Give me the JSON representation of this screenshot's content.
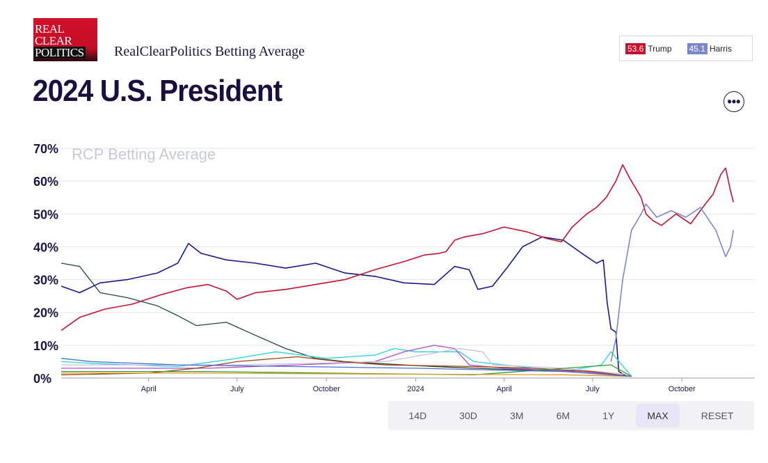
{
  "header": {
    "logo_lines": [
      "REAL",
      "CLEAR",
      "POLITICS"
    ],
    "subtitle": "RealClearPolitics Betting Average",
    "title": "2024 U.S. President"
  },
  "legend": [
    {
      "value": "53.6",
      "name": "Trump",
      "color": "#c8102e"
    },
    {
      "value": "45.1",
      "name": "Harris",
      "color": "#7b86c8"
    }
  ],
  "more_button": {
    "icon": "more-dots-icon",
    "label": "•••"
  },
  "range_buttons": [
    {
      "label": "14D",
      "active": false
    },
    {
      "label": "30D",
      "active": false
    },
    {
      "label": "3M",
      "active": false
    },
    {
      "label": "6M",
      "active": false
    },
    {
      "label": "1Y",
      "active": false
    },
    {
      "label": "MAX",
      "active": true
    },
    {
      "label": "RESET",
      "active": false
    }
  ],
  "chart_data": {
    "type": "line",
    "watermark": "RCP Betting Average",
    "ylim": [
      0,
      70
    ],
    "yticks": [
      "0%",
      "10%",
      "20%",
      "30%",
      "40%",
      "50%",
      "60%",
      "70%"
    ],
    "xlim": [
      "2023-01-01",
      "2024-12-15"
    ],
    "xticks": [
      {
        "date": "2023-04-01",
        "label": "April"
      },
      {
        "date": "2023-07-01",
        "label": "July"
      },
      {
        "date": "2023-10-01",
        "label": "October"
      },
      {
        "date": "2024-01-01",
        "label": "2024"
      },
      {
        "date": "2024-04-01",
        "label": "April"
      },
      {
        "date": "2024-07-01",
        "label": "July"
      },
      {
        "date": "2024-10-01",
        "label": "October"
      }
    ],
    "grid": true,
    "series": [
      {
        "name": "Trump",
        "color": "#c8102e",
        "points": [
          [
            "2023-01-01",
            14.5
          ],
          [
            "2023-01-20",
            18.5
          ],
          [
            "2023-02-15",
            21
          ],
          [
            "2023-03-15",
            22.5
          ],
          [
            "2023-04-15",
            25.5
          ],
          [
            "2023-05-10",
            27.5
          ],
          [
            "2023-06-01",
            28.5
          ],
          [
            "2023-06-20",
            26.5
          ],
          [
            "2023-07-01",
            24
          ],
          [
            "2023-07-20",
            26
          ],
          [
            "2023-08-20",
            27
          ],
          [
            "2023-09-20",
            28.5
          ],
          [
            "2023-10-20",
            30
          ],
          [
            "2023-11-20",
            33
          ],
          [
            "2023-12-20",
            35.5
          ],
          [
            "2024-01-10",
            37.5
          ],
          [
            "2024-01-25",
            38
          ],
          [
            "2024-02-01",
            38.5
          ],
          [
            "2024-02-10",
            42
          ],
          [
            "2024-02-20",
            43
          ],
          [
            "2024-03-10",
            44
          ],
          [
            "2024-04-01",
            46
          ],
          [
            "2024-04-25",
            44.5
          ],
          [
            "2024-05-15",
            42.5
          ],
          [
            "2024-05-30",
            41.5
          ],
          [
            "2024-06-10",
            46
          ],
          [
            "2024-06-25",
            50
          ],
          [
            "2024-07-05",
            52
          ],
          [
            "2024-07-15",
            55
          ],
          [
            "2024-07-25",
            60
          ],
          [
            "2024-08-01",
            65
          ],
          [
            "2024-08-08",
            61
          ],
          [
            "2024-08-20",
            55
          ],
          [
            "2024-08-25",
            50
          ],
          [
            "2024-09-01",
            48
          ],
          [
            "2024-09-10",
            46.5
          ],
          [
            "2024-09-25",
            50
          ],
          [
            "2024-10-10",
            47
          ],
          [
            "2024-10-25",
            53
          ],
          [
            "2024-11-02",
            56
          ],
          [
            "2024-11-10",
            62
          ],
          [
            "2024-11-15",
            64
          ],
          [
            "2024-11-20",
            57
          ],
          [
            "2024-11-23",
            53.6
          ]
        ]
      },
      {
        "name": "Harris",
        "color": "#7b86c8",
        "points": [
          [
            "2024-07-20",
            5
          ],
          [
            "2024-07-25",
            12
          ],
          [
            "2024-08-01",
            30
          ],
          [
            "2024-08-10",
            45
          ],
          [
            "2024-08-20",
            50
          ],
          [
            "2024-08-25",
            53
          ],
          [
            "2024-09-05",
            49
          ],
          [
            "2024-09-20",
            51
          ],
          [
            "2024-10-05",
            49
          ],
          [
            "2024-10-20",
            52
          ],
          [
            "2024-11-05",
            45
          ],
          [
            "2024-11-15",
            37
          ],
          [
            "2024-11-20",
            40
          ],
          [
            "2024-11-23",
            45.1
          ]
        ]
      },
      {
        "color": "#141a8c",
        "points": [
          [
            "2023-01-01",
            28
          ],
          [
            "2023-01-20",
            26
          ],
          [
            "2023-02-10",
            29
          ],
          [
            "2023-03-10",
            30
          ],
          [
            "2023-04-10",
            32
          ],
          [
            "2023-05-01",
            35
          ],
          [
            "2023-05-12",
            41
          ],
          [
            "2023-05-25",
            38
          ],
          [
            "2023-06-20",
            36
          ],
          [
            "2023-07-20",
            35
          ],
          [
            "2023-08-20",
            33.5
          ],
          [
            "2023-09-20",
            35
          ],
          [
            "2023-10-20",
            32
          ],
          [
            "2023-11-20",
            31
          ],
          [
            "2023-12-20",
            29
          ],
          [
            "2024-01-20",
            28.5
          ],
          [
            "2024-02-10",
            34
          ],
          [
            "2024-02-25",
            33
          ],
          [
            "2024-03-05",
            27
          ],
          [
            "2024-03-20",
            28
          ],
          [
            "2024-04-05",
            34
          ],
          [
            "2024-04-20",
            40
          ],
          [
            "2024-05-10",
            43
          ],
          [
            "2024-06-01",
            42
          ],
          [
            "2024-06-20",
            38
          ],
          [
            "2024-07-05",
            35
          ],
          [
            "2024-07-12",
            36
          ],
          [
            "2024-07-16",
            23
          ],
          [
            "2024-07-20",
            15
          ],
          [
            "2024-07-25",
            14
          ],
          [
            "2024-07-28",
            2
          ],
          [
            "2024-08-05",
            0.5
          ]
        ]
      },
      {
        "color": "#1f4a38",
        "points": [
          [
            "2023-01-01",
            35
          ],
          [
            "2023-01-20",
            34
          ],
          [
            "2023-02-10",
            26
          ],
          [
            "2023-03-10",
            24.5
          ],
          [
            "2023-04-10",
            22
          ],
          [
            "2023-05-01",
            19
          ],
          [
            "2023-05-20",
            16
          ],
          [
            "2023-06-20",
            17
          ],
          [
            "2023-07-20",
            13
          ],
          [
            "2023-08-20",
            9
          ],
          [
            "2023-09-20",
            6
          ],
          [
            "2023-10-20",
            5
          ],
          [
            "2023-11-20",
            4.5
          ],
          [
            "2023-12-20",
            4
          ],
          [
            "2024-01-20",
            3.5
          ],
          [
            "2024-03-01",
            3
          ],
          [
            "2024-04-20",
            2.5
          ],
          [
            "2024-06-20",
            2
          ],
          [
            "2024-08-10",
            0.5
          ]
        ]
      },
      {
        "color": "#26d4e0",
        "points": [
          [
            "2023-01-01",
            5
          ],
          [
            "2023-02-01",
            4.5
          ],
          [
            "2023-05-01",
            3.5
          ],
          [
            "2023-07-01",
            6
          ],
          [
            "2023-08-10",
            8
          ],
          [
            "2023-10-01",
            6
          ],
          [
            "2023-11-20",
            7
          ],
          [
            "2023-12-10",
            9
          ],
          [
            "2024-01-01",
            8
          ],
          [
            "2024-02-15",
            8
          ],
          [
            "2024-03-01",
            5
          ],
          [
            "2024-04-01",
            4
          ],
          [
            "2024-06-01",
            2
          ],
          [
            "2024-07-10",
            4
          ],
          [
            "2024-07-20",
            8
          ],
          [
            "2024-08-10",
            0.5
          ]
        ]
      },
      {
        "color": "#b04ac8",
        "points": [
          [
            "2023-01-01",
            3
          ],
          [
            "2023-06-01",
            3
          ],
          [
            "2023-09-01",
            4
          ],
          [
            "2023-11-20",
            5
          ],
          [
            "2023-12-20",
            8
          ],
          [
            "2024-01-20",
            10
          ],
          [
            "2024-02-10",
            9
          ],
          [
            "2024-02-25",
            4
          ],
          [
            "2024-04-01",
            3
          ],
          [
            "2024-06-20",
            2
          ],
          [
            "2024-08-10",
            0.5
          ]
        ]
      },
      {
        "color": "#c8c0d8",
        "points": [
          [
            "2023-01-01",
            4
          ],
          [
            "2023-07-01",
            4
          ],
          [
            "2023-12-01",
            5
          ],
          [
            "2024-02-15",
            9
          ],
          [
            "2024-03-10",
            8
          ],
          [
            "2024-03-20",
            4
          ],
          [
            "2024-06-01",
            3
          ],
          [
            "2024-08-10",
            1
          ]
        ]
      },
      {
        "color": "#a0420f",
        "points": [
          [
            "2023-01-01",
            1
          ],
          [
            "2023-04-01",
            1.5
          ],
          [
            "2023-05-20",
            3
          ],
          [
            "2023-07-01",
            5
          ],
          [
            "2023-09-01",
            6.5
          ],
          [
            "2023-10-15",
            5
          ],
          [
            "2023-12-01",
            4
          ],
          [
            "2024-03-01",
            3.5
          ],
          [
            "2024-05-01",
            3
          ],
          [
            "2024-07-01",
            2
          ],
          [
            "2024-08-10",
            0.5
          ]
        ]
      },
      {
        "color": "#2f9e2f",
        "points": [
          [
            "2023-01-01",
            2
          ],
          [
            "2023-06-01",
            2
          ],
          [
            "2023-10-01",
            1.5
          ],
          [
            "2024-03-01",
            1
          ],
          [
            "2024-07-20",
            4
          ],
          [
            "2024-08-10",
            0.5
          ]
        ]
      },
      {
        "color": "#e09a1a",
        "points": [
          [
            "2023-01-01",
            1.5
          ],
          [
            "2023-06-01",
            1.5
          ],
          [
            "2023-12-01",
            1.2
          ],
          [
            "2024-06-01",
            1
          ],
          [
            "2024-08-10",
            0.5
          ]
        ]
      },
      {
        "color": "#4a6fd0",
        "points": [
          [
            "2023-01-01",
            6
          ],
          [
            "2023-02-01",
            5
          ],
          [
            "2023-05-01",
            4
          ],
          [
            "2023-09-01",
            3.5
          ],
          [
            "2024-01-01",
            3
          ],
          [
            "2024-06-01",
            2
          ],
          [
            "2024-08-10",
            0.5
          ]
        ]
      }
    ]
  }
}
